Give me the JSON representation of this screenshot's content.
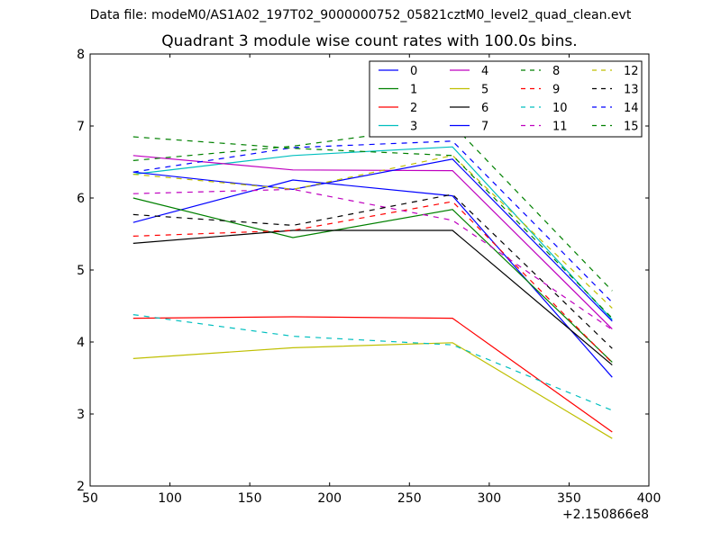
{
  "chart_data": {
    "type": "line",
    "suptitle": "Data file: modeM0/AS1A02_197T02_9000000752_05821cztM0_level2_quad_clean.evt",
    "title": "Quadrant 3 module wise count rates with 100.0s bins.",
    "xlabel": "",
    "ylabel": "",
    "x_offset_label": "+2.150866e8",
    "xlim": [
      50,
      400
    ],
    "ylim": [
      2,
      8
    ],
    "x_ticks": [
      50,
      100,
      150,
      200,
      250,
      300,
      350,
      400
    ],
    "y_ticks": [
      2,
      3,
      4,
      5,
      6,
      7,
      8
    ],
    "x": [
      77,
      177,
      277,
      377
    ],
    "legend_position": "top-right",
    "series": [
      {
        "name": "0",
        "color": "#0000ff",
        "dash": "solid",
        "values": [
          5.66,
          6.25,
          6.03,
          3.51
        ]
      },
      {
        "name": "1",
        "color": "#008000",
        "dash": "solid",
        "values": [
          6.0,
          5.45,
          5.84,
          3.72
        ]
      },
      {
        "name": "2",
        "color": "#ff0000",
        "dash": "solid",
        "values": [
          4.33,
          4.35,
          4.33,
          2.75
        ]
      },
      {
        "name": "3",
        "color": "#00bfbf",
        "dash": "solid",
        "values": [
          6.33,
          6.59,
          6.71,
          4.31
        ]
      },
      {
        "name": "4",
        "color": "#bf00bf",
        "dash": "solid",
        "values": [
          6.59,
          6.39,
          6.38,
          4.18
        ]
      },
      {
        "name": "5",
        "color": "#bfbf00",
        "dash": "solid",
        "values": [
          3.77,
          3.92,
          3.99,
          2.66
        ]
      },
      {
        "name": "6",
        "color": "#000000",
        "dash": "solid",
        "values": [
          5.37,
          5.55,
          5.55,
          3.68
        ]
      },
      {
        "name": "7",
        "color": "#0000ff",
        "dash": "solid",
        "values": [
          6.36,
          6.12,
          6.54,
          4.29
        ]
      },
      {
        "name": "8",
        "color": "#008000",
        "dash": "dashed",
        "values": [
          6.52,
          6.72,
          7.02,
          4.71
        ]
      },
      {
        "name": "9",
        "color": "#ff0000",
        "dash": "dashed",
        "values": [
          5.47,
          5.55,
          5.95,
          3.71
        ]
      },
      {
        "name": "10",
        "color": "#00bfbf",
        "dash": "dashed",
        "values": [
          4.38,
          4.08,
          3.96,
          3.05
        ]
      },
      {
        "name": "11",
        "color": "#bf00bf",
        "dash": "dashed",
        "values": [
          6.06,
          6.12,
          5.69,
          4.17
        ]
      },
      {
        "name": "12",
        "color": "#bfbf00",
        "dash": "dashed",
        "values": [
          6.33,
          6.12,
          6.59,
          4.47
        ]
      },
      {
        "name": "13",
        "color": "#000000",
        "dash": "dashed",
        "values": [
          5.77,
          5.62,
          6.05,
          3.91
        ]
      },
      {
        "name": "14",
        "color": "#0000ff",
        "dash": "dashed",
        "values": [
          6.36,
          6.7,
          6.79,
          4.55
        ]
      },
      {
        "name": "15",
        "color": "#008000",
        "dash": "dashed",
        "values": [
          6.85,
          6.69,
          6.59,
          4.33
        ]
      }
    ]
  }
}
